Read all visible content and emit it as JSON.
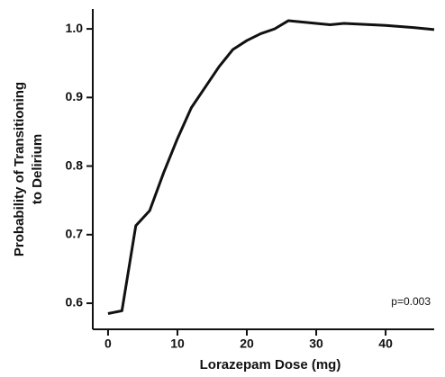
{
  "chart_data": {
    "type": "line",
    "xlabel": "Lorazepam Dose (mg)",
    "ylabel": [
      "Probability of Transitioning",
      "to Delirium"
    ],
    "annotation": "p=0.003",
    "x": [
      0,
      2,
      4,
      6,
      8,
      10,
      12,
      14,
      16,
      18,
      20,
      22,
      24,
      26,
      28,
      30,
      32,
      34,
      36,
      40,
      44,
      47
    ],
    "series": [
      {
        "color": "#111111",
        "values": [
          0.585,
          0.589,
          0.713,
          0.735,
          0.79,
          0.84,
          0.885,
          0.915,
          0.945,
          0.97,
          0.983,
          0.993,
          1.0,
          1.012,
          1.01,
          1.008,
          1.006,
          1.008,
          1.007,
          1.005,
          1.002,
          0.999
        ]
      }
    ],
    "xlim": [
      -2.2,
      47
    ],
    "ylim": [
      0.562,
      1.029
    ],
    "xticks": [
      0,
      10,
      20,
      30,
      40
    ],
    "yticks": [
      0.6,
      0.7,
      0.8,
      0.9,
      {
        "value": 1.0,
        "label": "1.0"
      }
    ],
    "grid": false
  }
}
